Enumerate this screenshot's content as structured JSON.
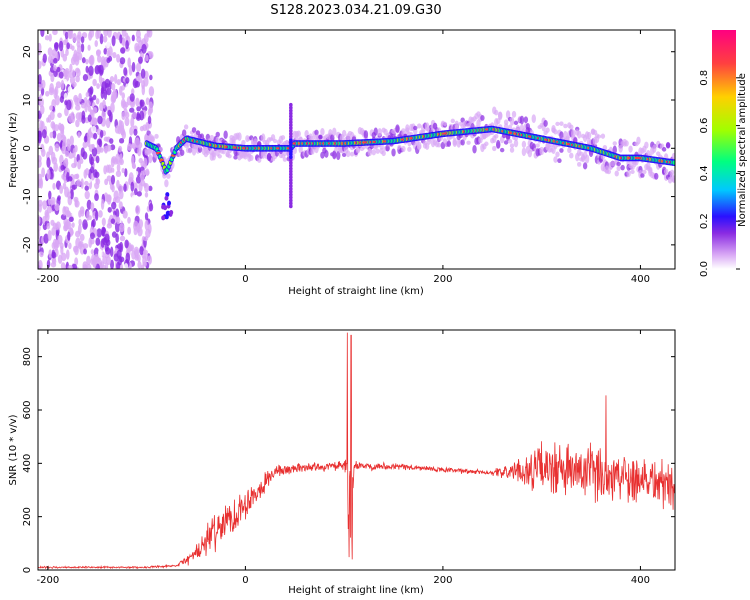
{
  "title": "S128.2023.034.21.09.G30",
  "colors": {
    "snr_line": "#e83030",
    "frame": "#000000",
    "colormap": [
      "#ffffff",
      "#d9a8f5",
      "#8a2be2",
      "#2a10ff",
      "#00c8ff",
      "#00ff80",
      "#a0ff00",
      "#ffd000",
      "#ff4040",
      "#ff0080"
    ]
  },
  "chart_data": [
    {
      "name_key": "spectrogram",
      "type": "heatmap",
      "title": "S128.2023.034.21.09.G30",
      "xlabel": "Height of straight line (km)",
      "ylabel": "Frequency (Hz)",
      "xlim": [
        -210,
        435
      ],
      "ylim": [
        -25,
        24.5
      ],
      "x_ticks": [
        -200,
        0,
        200,
        400
      ],
      "y_ticks": [
        -20,
        -10,
        0,
        10,
        20
      ],
      "colorbar": {
        "label": "Normalized spectral amplitude",
        "range": [
          0,
          1
        ],
        "ticks": [
          0.0,
          0.2,
          0.4,
          0.6,
          0.8
        ]
      },
      "noise_region_x": [
        -210,
        -95
      ],
      "ridge": {
        "x": [
          -100,
          -90,
          -80,
          -70,
          -60,
          -50,
          -30,
          0,
          20,
          46,
          50,
          100,
          150,
          200,
          250,
          300,
          350,
          380,
          400,
          435
        ],
        "freq": [
          1,
          0,
          -5,
          0,
          2,
          1.5,
          0.5,
          0,
          0,
          0,
          1,
          1,
          1.5,
          3,
          4,
          2,
          0,
          -2,
          -2,
          -3
        ]
      },
      "features": [
        {
          "x": -80,
          "freq": -12,
          "note": "lower branch"
        },
        {
          "x": 46,
          "freq_range": [
            -12,
            9
          ],
          "note": "vertical spike"
        }
      ]
    },
    {
      "name_key": "snr",
      "type": "line",
      "xlabel": "Height of straight line (km)",
      "ylabel": "SNR (10 * v/v)",
      "xlim": [
        -210,
        435
      ],
      "ylim": [
        0,
        900
      ],
      "x_ticks": [
        -200,
        0,
        200,
        400
      ],
      "y_ticks": [
        0,
        200,
        400,
        600,
        800
      ],
      "envelope": {
        "x": [
          -210,
          -100,
          -70,
          -50,
          -30,
          -10,
          10,
          30,
          60,
          100,
          103,
          106,
          110,
          150,
          200,
          250,
          280,
          300,
          350,
          400,
          435
        ],
        "mean": [
          10,
          10,
          15,
          60,
          150,
          210,
          290,
          370,
          385,
          390,
          380,
          120,
          390,
          390,
          375,
          365,
          370,
          380,
          360,
          350,
          310
        ],
        "spread": [
          4,
          4,
          6,
          40,
          90,
          90,
          60,
          30,
          20,
          20,
          250,
          330,
          20,
          15,
          12,
          12,
          60,
          120,
          130,
          120,
          110
        ]
      },
      "spikes": [
        {
          "x": 103,
          "value": 890
        },
        {
          "x": 107,
          "value": 880
        },
        {
          "x": 108,
          "value": 40
        },
        {
          "x": 365,
          "value": 655
        }
      ]
    }
  ]
}
